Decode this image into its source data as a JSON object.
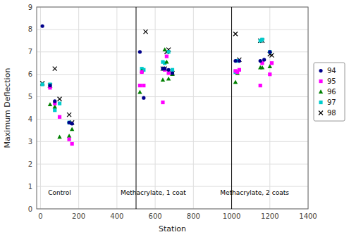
{
  "chart_data": {
    "type": "scatter",
    "title": "",
    "xlabel": "Station",
    "ylabel": "Maximum Deflection",
    "xlim": [
      -20,
      1400
    ],
    "ylim": [
      0,
      9
    ],
    "xticks": [
      0,
      200,
      400,
      600,
      800,
      1000,
      1200,
      1400
    ],
    "yticks": [
      0,
      1,
      2,
      3,
      4,
      5,
      6,
      7,
      8,
      9
    ],
    "grid": true,
    "legend": "right",
    "vlines": [
      500,
      1000
    ],
    "annotations": [
      {
        "text": "Control",
        "x": 100,
        "y": 0.55
      },
      {
        "text": "Methacrylate, 1 coat",
        "x": 590,
        "y": 0.55
      },
      {
        "text": "Methacrylate, 2 coats",
        "x": 1120,
        "y": 0.55
      }
    ],
    "series": [
      {
        "name": "94",
        "color": "#00008B",
        "marker": "circle",
        "x": [
          10,
          50,
          75,
          150,
          165,
          520,
          540,
          640,
          650,
          670,
          690,
          1020,
          1040,
          1150,
          1170,
          1200
        ],
        "values": [
          8.15,
          5.5,
          4.8,
          3.85,
          3.8,
          7.0,
          4.95,
          6.25,
          6.25,
          6.2,
          6.05,
          6.6,
          6.6,
          6.6,
          6.65,
          7.0
        ]
      },
      {
        "name": "95",
        "color": "#FF00FF",
        "marker": "square",
        "x": [
          50,
          75,
          100,
          150,
          165,
          520,
          530,
          540,
          640,
          650,
          660,
          670,
          1020,
          1030,
          1040,
          1150,
          1160,
          1200,
          1210
        ],
        "values": [
          5.4,
          4.7,
          4.1,
          3.1,
          2.9,
          5.5,
          6.1,
          5.5,
          4.75,
          6.2,
          6.8,
          6.05,
          6.15,
          6.1,
          6.2,
          5.5,
          6.5,
          6.0,
          6.5
        ]
      },
      {
        "name": "96",
        "color": "#008000",
        "marker": "triangle",
        "x": [
          50,
          75,
          100,
          150,
          165,
          520,
          530,
          640,
          650,
          660,
          670,
          690,
          1020,
          1030,
          1150,
          1160,
          1200
        ],
        "values": [
          4.65,
          4.55,
          3.2,
          3.25,
          3.55,
          5.2,
          6.15,
          5.75,
          7.1,
          6.55,
          5.8,
          6.0,
          5.65,
          6.05,
          6.3,
          6.3,
          6.35
        ]
      },
      {
        "name": "97",
        "color": "#00CCCC",
        "marker": "square",
        "x": [
          10,
          50,
          75,
          100,
          150,
          530,
          540,
          640,
          650,
          670,
          690,
          1020,
          1030,
          1150,
          1160,
          1200
        ],
        "values": [
          5.55,
          5.55,
          4.4,
          4.7,
          3.85,
          6.25,
          6.2,
          6.55,
          6.5,
          7.0,
          6.2,
          6.1,
          6.6,
          7.5,
          7.55,
          7.0
        ]
      },
      {
        "name": "98",
        "color": "#000000",
        "marker": "x",
        "x": [
          10,
          50,
          75,
          100,
          150,
          165,
          550,
          640,
          650,
          660,
          670,
          690,
          1020,
          1040,
          1150,
          1160,
          1200,
          1210
        ],
        "values": [
          5.6,
          5.5,
          6.25,
          4.9,
          4.2,
          3.85,
          7.9,
          6.25,
          6.25,
          7.0,
          7.1,
          6.05,
          7.8,
          6.65,
          7.5,
          7.5,
          6.9,
          6.85
        ]
      }
    ]
  }
}
